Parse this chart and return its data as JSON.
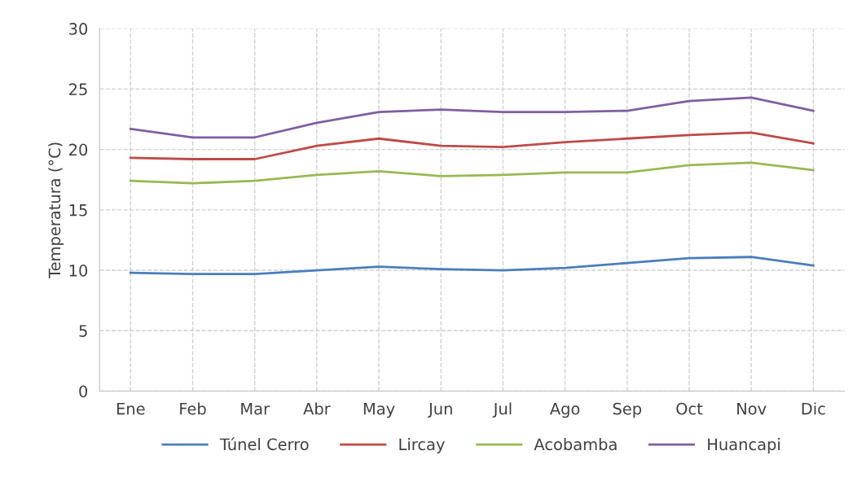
{
  "chart_data": {
    "type": "line",
    "ylabel": "Temperatura (°C)",
    "categories": [
      "Ene",
      "Feb",
      "Mar",
      "Abr",
      "May",
      "Jun",
      "Jul",
      "Ago",
      "Sep",
      "Oct",
      "Nov",
      "Dic"
    ],
    "series": [
      {
        "name": "Túnel Cerro",
        "color": "#4a7ebb",
        "values": [
          9.8,
          9.7,
          9.7,
          10.0,
          10.3,
          10.1,
          10.0,
          10.2,
          10.6,
          11.0,
          11.1,
          10.4
        ]
      },
      {
        "name": "Lircay",
        "color": "#be4b48",
        "values": [
          19.3,
          19.2,
          19.2,
          20.3,
          20.9,
          20.3,
          20.2,
          20.6,
          20.9,
          21.2,
          21.4,
          20.5
        ]
      },
      {
        "name": "Acobamba",
        "color": "#98b954",
        "values": [
          17.4,
          17.2,
          17.4,
          17.9,
          18.2,
          17.8,
          17.9,
          18.1,
          18.1,
          18.7,
          18.9,
          18.3
        ]
      },
      {
        "name": "Huancapi",
        "color": "#7d60a0",
        "values": [
          21.7,
          21.0,
          21.0,
          22.2,
          23.1,
          23.3,
          23.1,
          23.1,
          23.2,
          24.0,
          24.3,
          23.2
        ]
      }
    ],
    "ylim": [
      0,
      30
    ],
    "yticks": [
      0,
      5,
      10,
      15,
      20,
      25,
      30
    ],
    "grid": true,
    "legend": "bottom",
    "marker": "none",
    "line_style": "solid"
  }
}
